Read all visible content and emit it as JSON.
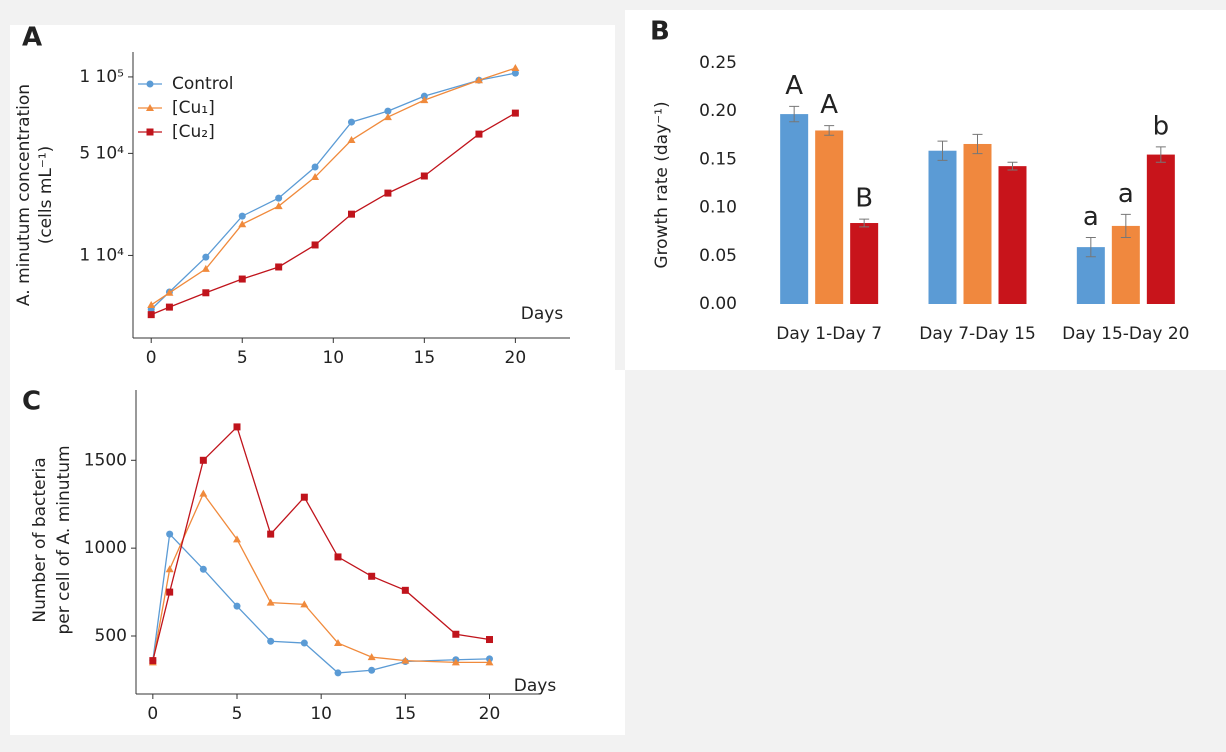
{
  "chart_data": [
    {
      "type": "line",
      "panel": "A",
      "scale": "sqrt",
      "y_label": [
        "A. minutum concentration",
        "(cells mL⁻¹)"
      ],
      "x_label": "Days",
      "x": [
        0,
        1,
        3,
        5,
        7,
        9,
        11,
        13,
        15,
        18,
        20
      ],
      "xlim": [
        -1,
        23
      ],
      "xticks": [
        0,
        5,
        10,
        15,
        20
      ],
      "ylim": [
        0,
        120000
      ],
      "yticks": [
        {
          "value": 10000,
          "label": "1 10⁴"
        },
        {
          "value": 50000,
          "label": "5 10⁴"
        },
        {
          "value": 100000,
          "label": "1 10⁵"
        }
      ],
      "legend": "upper left",
      "series": [
        {
          "name": "Control",
          "color": "#5b9bd5",
          "marker": "circle",
          "values": [
            1200,
            3100,
            9600,
            21800,
            28700,
            42900,
            68400,
            75500,
            85800,
            97500,
            102900
          ]
        },
        {
          "name": "[Cu₁]",
          "color": "#f08a3c",
          "marker": "triangle",
          "values": [
            1600,
            3000,
            7000,
            19000,
            25500,
            38000,
            57500,
            71600,
            83000,
            97500,
            106900
          ]
        },
        {
          "name": "[Cu₂]",
          "color": "#c0141c",
          "marker": "square",
          "values": [
            800,
            1400,
            3000,
            5100,
            7400,
            12700,
            22500,
            30800,
            38500,
            61000,
            74200
          ]
        }
      ]
    },
    {
      "type": "bar",
      "panel": "B",
      "y_label": "Growth rate (day⁻¹)",
      "categories": [
        "Day 1-Day 7",
        "Day 7-Day 15",
        "Day 15-Day 20"
      ],
      "ylim": [
        0,
        0.25
      ],
      "yticks": [
        {
          "value": 0,
          "label": "0.00"
        },
        {
          "value": 0.05,
          "label": "0.05"
        },
        {
          "value": 0.1,
          "label": "0.10"
        },
        {
          "value": 0.15,
          "label": "0.15"
        },
        {
          "value": 0.2,
          "label": "0.20"
        },
        {
          "value": 0.25,
          "label": "0.25"
        }
      ],
      "series": [
        {
          "name": "Control",
          "color": "#5b9bd5",
          "values": [
            0.197,
            0.159,
            0.059
          ],
          "errors": [
            0.008,
            0.01,
            0.01
          ],
          "letters": [
            "A",
            null,
            "a"
          ]
        },
        {
          "name": "[Cu₁]",
          "color": "#f0883e",
          "values": [
            0.18,
            0.166,
            0.081
          ],
          "errors": [
            0.005,
            0.01,
            0.012
          ],
          "letters": [
            "A",
            null,
            "a"
          ]
        },
        {
          "name": "[Cu₂]",
          "color": "#c8141b",
          "values": [
            0.084,
            0.143,
            0.155
          ],
          "errors": [
            0.004,
            0.004,
            0.008
          ],
          "letters": [
            "B",
            null,
            "b"
          ]
        }
      ]
    },
    {
      "type": "line",
      "panel": "C",
      "scale": "linear",
      "y_label": [
        "Number of bacteria",
        "per cell of A. minutum"
      ],
      "x_label": "Days",
      "x": [
        0,
        1,
        3,
        5,
        7,
        9,
        11,
        13,
        15,
        18,
        20
      ],
      "xlim": [
        -1,
        23
      ],
      "xticks": [
        0,
        5,
        10,
        15,
        20
      ],
      "ylim": [
        170,
        1900
      ],
      "yticks": [
        500,
        1000,
        1500
      ],
      "series": [
        {
          "name": "Control",
          "color": "#5b9bd5",
          "marker": "circle",
          "values": [
            360,
            1080,
            880,
            670,
            470,
            460,
            290,
            305,
            355,
            365,
            370
          ]
        },
        {
          "name": "[Cu₁]",
          "color": "#f08a3c",
          "marker": "triangle",
          "values": [
            350,
            880,
            1310,
            1050,
            690,
            680,
            460,
            380,
            360,
            350,
            350
          ]
        },
        {
          "name": "[Cu₂]",
          "color": "#c0141c",
          "marker": "square",
          "values": [
            360,
            750,
            1500,
            1690,
            1080,
            1290,
            950,
            840,
            760,
            510,
            480
          ]
        }
      ]
    }
  ]
}
